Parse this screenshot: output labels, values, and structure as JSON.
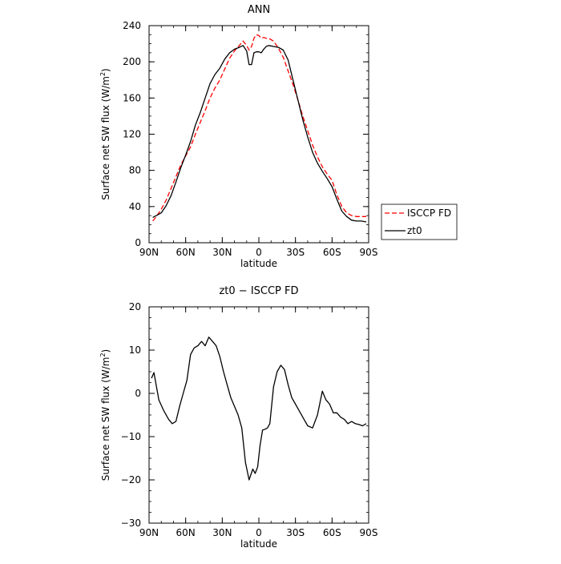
{
  "chart_data": [
    {
      "type": "line",
      "title": "ANN",
      "xlabel": "latitude",
      "ylabel": "Surface net SW flux (W/m",
      "ylabel_sup": "2",
      "ylabel_close": ")",
      "xlim": [
        -90,
        90
      ],
      "ylim": [
        0,
        240
      ],
      "xticks": [
        -90,
        -60,
        -30,
        0,
        30,
        60,
        90
      ],
      "xtick_labels": [
        "90N",
        "60N",
        "30N",
        "0",
        "30S",
        "60S",
        "90S"
      ],
      "yticks": [
        0,
        40,
        80,
        120,
        160,
        200,
        240
      ],
      "ytick_labels": [
        "0",
        "40",
        "80",
        "120",
        "160",
        "200",
        "240"
      ],
      "grid": false,
      "legend_position": "right",
      "series": [
        {
          "name": "ISCCP FD",
          "color": "#ff0000",
          "dash": "dashed",
          "x": [
            -87,
            -84,
            -80,
            -76,
            -72,
            -68,
            -64,
            -60,
            -56,
            -52,
            -48,
            -44,
            -40,
            -36,
            -32,
            -28,
            -24,
            -20,
            -16,
            -13,
            -10,
            -8,
            -6,
            -4,
            -2,
            0,
            2,
            4,
            6,
            8,
            12,
            16,
            20,
            24,
            28,
            32,
            36,
            40,
            44,
            48,
            52,
            56,
            60,
            64,
            68,
            72,
            76,
            80,
            84,
            88
          ],
          "y": [
            24,
            29,
            37,
            47,
            60,
            73,
            86,
            96,
            106,
            120,
            133,
            146,
            160,
            171,
            180,
            192,
            204,
            212,
            218,
            223,
            218,
            213,
            217,
            226,
            230,
            229,
            226,
            227,
            226,
            226,
            223,
            215,
            205,
            190,
            175,
            158,
            140,
            124,
            108,
            95,
            84,
            76,
            69,
            53,
            40,
            33,
            30,
            29,
            29,
            29
          ]
        },
        {
          "name": "zt0",
          "color": "#000000",
          "dash": "solid",
          "x": [
            -87,
            -84,
            -80,
            -76,
            -72,
            -68,
            -64,
            -60,
            -56,
            -52,
            -48,
            -44,
            -40,
            -36,
            -32,
            -28,
            -24,
            -20,
            -16,
            -13,
            -10,
            -8,
            -6,
            -4,
            -2,
            0,
            2,
            4,
            6,
            8,
            12,
            16,
            20,
            24,
            28,
            32,
            36,
            40,
            44,
            48,
            52,
            56,
            60,
            64,
            68,
            72,
            76,
            80,
            84,
            88
          ],
          "y": [
            28,
            30,
            33,
            41,
            52,
            67,
            83,
            97,
            112,
            130,
            144,
            160,
            176,
            186,
            193,
            203,
            210,
            214,
            216,
            218,
            212,
            197,
            197,
            210,
            211,
            211,
            210,
            214,
            217,
            218,
            217,
            216,
            213,
            202,
            180,
            158,
            136,
            117,
            100,
            88,
            79,
            71,
            62,
            48,
            35,
            29,
            25,
            24,
            24,
            23
          ]
        }
      ]
    },
    {
      "type": "line",
      "title": "zt0 − ISCCP FD",
      "xlabel": "latitude",
      "ylabel": "Surface net SW flux (W/m",
      "ylabel_sup": "2",
      "ylabel_close": ")",
      "xlim": [
        -90,
        90
      ],
      "ylim": [
        -30,
        20
      ],
      "xticks": [
        -90,
        -60,
        -30,
        0,
        30,
        60,
        90
      ],
      "xtick_labels": [
        "90N",
        "60N",
        "30N",
        "0",
        "30S",
        "60S",
        "90S"
      ],
      "yticks": [
        -30,
        -20,
        -10,
        0,
        10,
        20
      ],
      "ytick_labels": [
        "−30",
        "−20",
        "−10",
        "0",
        "10",
        "20"
      ],
      "grid": false,
      "series": [
        {
          "color": "#000000",
          "dash": "solid",
          "x": [
            -88,
            -86,
            -82,
            -78,
            -74,
            -71,
            -68,
            -65,
            -62,
            -59,
            -56,
            -53,
            -50,
            -47,
            -44,
            -41,
            -38,
            -35,
            -32,
            -29,
            -26,
            -23,
            -20,
            -17,
            -14,
            -11,
            -8,
            -5,
            -3,
            -1,
            1,
            3,
            5,
            7,
            9,
            12,
            15,
            18,
            21,
            24,
            27,
            30,
            33,
            36,
            40,
            44,
            48,
            52,
            55,
            58,
            61,
            64,
            67,
            70,
            73,
            76,
            79,
            82,
            85,
            88
          ],
          "y": [
            3.5,
            4.8,
            -1.5,
            -4,
            -6,
            -7,
            -6.5,
            -3,
            0,
            3,
            9,
            10.5,
            11,
            12,
            11,
            13,
            12,
            11,
            8.5,
            5,
            2,
            -1,
            -3,
            -5,
            -8,
            -16,
            -20,
            -17.5,
            -18.5,
            -17,
            -12,
            -8.5,
            -8.3,
            -8,
            -7,
            1.5,
            5,
            6.5,
            5.5,
            2,
            -1,
            -2.5,
            -4,
            -5.5,
            -7.5,
            -8,
            -5,
            0.5,
            -1.5,
            -2.5,
            -4.5,
            -4.5,
            -5.5,
            -6,
            -7,
            -6.5,
            -7,
            -7.2,
            -7.5,
            -7
          ]
        }
      ]
    }
  ]
}
